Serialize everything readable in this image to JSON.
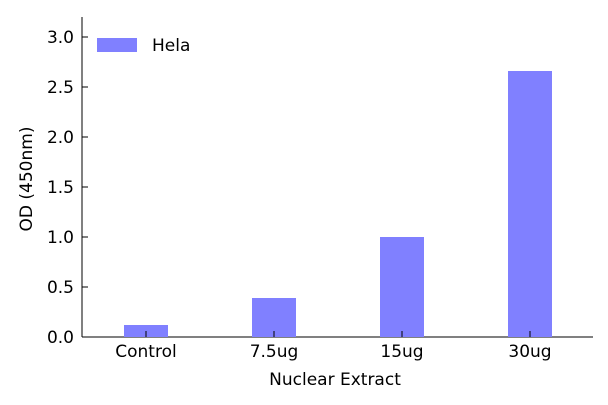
{
  "chart_data": {
    "type": "bar",
    "title": "",
    "xlabel": "Nuclear Extract",
    "ylabel": "OD (450nm)",
    "categories": [
      "Control",
      "7.5ug",
      "15ug",
      "30ug"
    ],
    "series": [
      {
        "name": "Hela",
        "values": [
          0.12,
          0.39,
          1.0,
          2.66
        ]
      }
    ],
    "ylim": [
      0,
      3.2
    ],
    "yticks": [
      0.0,
      0.5,
      1.0,
      1.5,
      2.0,
      2.5,
      3.0
    ],
    "ytick_labels": [
      "0.0",
      "0.5",
      "1.0",
      "1.5",
      "2.0",
      "2.5",
      "3.0"
    ],
    "grid": false,
    "legend_position": "top-left",
    "colors": {
      "bar": "#8080ff",
      "axis": "#000000"
    }
  }
}
